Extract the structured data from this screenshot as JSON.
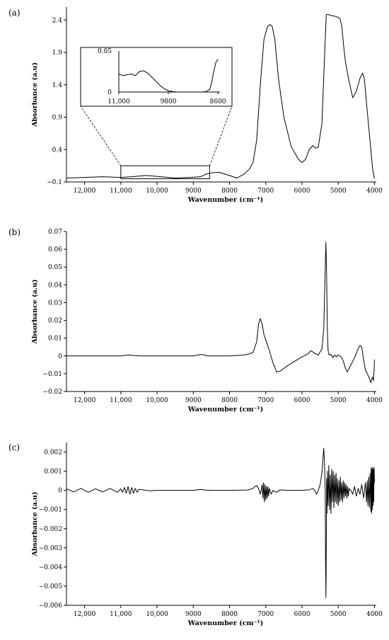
{
  "chart_data": [
    {
      "type": "line",
      "panel_label": "(a)",
      "xlabel": "Wavenumber (cm⁻¹)",
      "ylabel": "Absorbance (a.u)",
      "xlim": [
        12500,
        3950
      ],
      "ylim": [
        -0.1,
        2.6
      ],
      "x_ticks": [
        12000,
        11000,
        10000,
        9000,
        8000,
        7000,
        6000,
        5000,
        4000
      ],
      "x_tick_labels": [
        "12,000",
        "11,000",
        "10,000",
        "9000",
        "8000",
        "7000",
        "6000",
        "5000",
        "4000"
      ],
      "y_ticks": [
        -0.1,
        0.4,
        0.9,
        1.4,
        1.9,
        2.4
      ],
      "y_tick_labels": [
        "−0.1",
        "0.4",
        "0.9",
        "1.4",
        "1.9",
        "2.4"
      ],
      "series": [
        {
          "x": [
            12500,
            12000,
            11500,
            11000,
            10700,
            10300,
            9900,
            9500,
            9100,
            8800,
            8650,
            8500,
            8300,
            8000,
            7800,
            7600,
            7450,
            7350,
            7250,
            7150,
            7050,
            6950,
            6880,
            6820,
            6750,
            6650,
            6500,
            6300,
            6100,
            6000,
            5900,
            5800,
            5700,
            5620,
            5550,
            5450,
            5380,
            5330,
            5300,
            5200,
            5100,
            5000,
            4950,
            4900,
            4850,
            4800,
            4700,
            4600,
            4500,
            4400,
            4330,
            4280,
            4200,
            4100,
            4050,
            4000
          ],
          "y": [
            -0.04,
            -0.03,
            -0.02,
            -0.03,
            -0.02,
            0.0,
            -0.02,
            -0.04,
            -0.03,
            -0.02,
            0.02,
            0.04,
            0.05,
            0.0,
            -0.04,
            0.02,
            0.1,
            0.2,
            0.55,
            1.4,
            2.1,
            2.3,
            2.33,
            2.3,
            2.1,
            1.5,
            0.9,
            0.45,
            0.25,
            0.2,
            0.25,
            0.4,
            0.46,
            0.42,
            0.44,
            0.8,
            1.8,
            2.48,
            2.49,
            2.47,
            2.46,
            2.44,
            2.42,
            2.3,
            2.0,
            1.75,
            1.45,
            1.2,
            1.3,
            1.5,
            1.58,
            1.5,
            1.0,
            0.4,
            0.1,
            -0.05
          ]
        }
      ],
      "inset": {
        "xlim": [
          11000,
          8550
        ],
        "ylim": [
          0,
          0.05
        ],
        "x_ticks": [
          11000,
          9800,
          8600
        ],
        "x_tick_labels": [
          "11,000",
          "9800",
          "8600"
        ],
        "y_ticks": [
          0,
          0.05
        ],
        "y_tick_labels": [
          "0",
          "0.05"
        ],
        "x": [
          11000,
          10900,
          10800,
          10700,
          10600,
          10500,
          10400,
          10300,
          10200,
          10100,
          10000,
          9900,
          9800,
          9700,
          9600,
          9400,
          9200,
          9000,
          8900,
          8800,
          8750,
          8700,
          8650,
          8600
        ],
        "y": [
          0.022,
          0.02,
          0.021,
          0.022,
          0.02,
          0.025,
          0.026,
          0.023,
          0.018,
          0.013,
          0.008,
          0.004,
          0.0015,
          0.0005,
          0.0,
          0.0,
          0.0,
          0.0,
          0.0003,
          0.003,
          0.012,
          0.025,
          0.036,
          0.04
        ]
      }
    },
    {
      "type": "line",
      "panel_label": "(b)",
      "xlabel": "Wavenumber (cm⁻¹)",
      "ylabel": "Absorbance (a.u)",
      "xlim": [
        12500,
        3950
      ],
      "ylim": [
        -0.02,
        0.07
      ],
      "x_ticks": [
        12000,
        11000,
        10000,
        9000,
        8000,
        7000,
        6000,
        5000,
        4000
      ],
      "x_tick_labels": [
        "12,000",
        "11,000",
        "10,000",
        "9000",
        "8000",
        "7000",
        "6000",
        "5000",
        "4000"
      ],
      "y_ticks": [
        -0.02,
        -0.01,
        0,
        0.01,
        0.02,
        0.03,
        0.04,
        0.05,
        0.06,
        0.07
      ],
      "y_tick_labels": [
        "−0.02",
        "−0.01",
        "0",
        "0.01",
        "0.02",
        "0.03",
        "0.04",
        "0.05",
        "0.06",
        "0.07"
      ],
      "series": [
        {
          "x": [
            12500,
            11000,
            10800,
            10600,
            10400,
            9000,
            8800,
            8700,
            8600,
            8000,
            7600,
            7450,
            7350,
            7250,
            7200,
            7150,
            7100,
            7050,
            7000,
            6900,
            6800,
            6700,
            6600,
            6400,
            6200,
            6000,
            5850,
            5750,
            5650,
            5550,
            5450,
            5400,
            5370,
            5340,
            5320,
            5300,
            5280,
            5250,
            5200,
            5150,
            5100,
            5050,
            5000,
            4950,
            4900,
            4850,
            4800,
            4750,
            4650,
            4550,
            4450,
            4400,
            4350,
            4300,
            4250,
            4200,
            4150,
            4100,
            4080,
            4050,
            4030,
            4010,
            4000
          ],
          "y": [
            0.0,
            0.0,
            0.0005,
            0.0002,
            0.0,
            0.0,
            0.0008,
            0.0006,
            0.0,
            0.0,
            0.0005,
            0.0012,
            0.002,
            0.008,
            0.018,
            0.021,
            0.018,
            0.012,
            0.009,
            0.003,
            -0.004,
            -0.009,
            -0.0085,
            -0.0055,
            -0.003,
            -0.0005,
            0.001,
            0.003,
            0.0015,
            0.0005,
            0.004,
            0.015,
            0.04,
            0.064,
            0.045,
            0.015,
            0.003,
            0.0005,
            0.001,
            -0.001,
            0.0005,
            -0.0005,
            0.0005,
            0.0,
            -0.001,
            -0.0035,
            -0.007,
            -0.009,
            -0.005,
            -0.001,
            0.004,
            0.006,
            0.005,
            -0.002,
            -0.008,
            -0.01,
            -0.012,
            -0.015,
            -0.013,
            -0.012,
            -0.014,
            -0.008,
            -0.002
          ]
        }
      ]
    },
    {
      "type": "line",
      "panel_label": "(c)",
      "xlabel": "Wavenumber (cm⁻¹)",
      "ylabel": "Absorbance (a.u)",
      "xlim": [
        12500,
        3950
      ],
      "ylim": [
        -0.006,
        0.0025
      ],
      "x_ticks": [
        12000,
        11000,
        10000,
        9000,
        8000,
        7000,
        6000,
        5000,
        4000
      ],
      "x_tick_labels": [
        "12,000",
        "11,000",
        "10,000",
        "9000",
        "8000",
        "7000",
        "6000",
        "5000",
        "4000"
      ],
      "y_ticks": [
        -0.006,
        -0.005,
        -0.004,
        -0.003,
        -0.002,
        -0.001,
        0,
        0.001,
        0.002
      ],
      "y_tick_labels": [
        "−0.006",
        "−0.005",
        "−0.004",
        "−0.003",
        "−0.002",
        "−0.001",
        "0",
        "0.001",
        "0.002"
      ],
      "series": [
        {
          "x": [
            12500,
            12300,
            12100,
            11900,
            11700,
            11500,
            11300,
            11100,
            11000,
            10950,
            10900,
            10850,
            10800,
            10750,
            10700,
            10650,
            10600,
            10550,
            10500,
            10400,
            10200,
            10000,
            9500,
            9000,
            8800,
            8700,
            8500,
            8000,
            7500,
            7350,
            7300,
            7250,
            7200,
            7150,
            7100,
            7080,
            7060,
            7040,
            7020,
            7000,
            6980,
            6960,
            6940,
            6920,
            6900,
            6850,
            6800,
            6700,
            6600,
            6400,
            6200,
            6000,
            5800,
            5700,
            5650,
            5600,
            5550,
            5500,
            5450,
            5420,
            5400,
            5380,
            5360,
            5350,
            5340,
            5330,
            5320,
            5310,
            5300,
            5280,
            5260,
            5240,
            5220,
            5200,
            5180,
            5160,
            5140,
            5120,
            5100,
            5080,
            5060,
            5040,
            5020,
            5000,
            4980,
            4960,
            4940,
            4920,
            4900,
            4880,
            4860,
            4840,
            4820,
            4800,
            4780,
            4760,
            4740,
            4720,
            4700,
            4650,
            4600,
            4550,
            4500,
            4450,
            4400,
            4350,
            4300,
            4250,
            4220,
            4200,
            4180,
            4160,
            4140,
            4120,
            4100,
            4090,
            4080,
            4070,
            4060,
            4050,
            4040,
            4030,
            4020,
            4010,
            4000
          ],
          "y": [
            8e-05,
            -8e-05,
            0.0001,
            -0.0001,
            8e-05,
            -8e-05,
            0.0001,
            -0.0001,
            8e-05,
            -0.0001,
            0.00015,
            -0.00015,
            0.0002,
            -0.0002,
            0.00015,
            -0.00015,
            0.0001,
            -0.0001,
            5e-05,
            3e-05,
            -2e-05,
            0.0,
            0.0,
            0.0,
            5e-05,
            2e-05,
            0.0,
            0.0,
            2e-05,
            0.0001,
            0.0002,
            0.00025,
            0.0001,
            -0.0002,
            0.0003,
            -0.0004,
            0.0004,
            -0.0006,
            0.0003,
            -0.0005,
            0.0002,
            -0.0004,
            0.0002,
            -0.0003,
            0.0001,
            -0.0002,
            0.0,
            -0.0001,
            3e-05,
            0.0,
            0.0,
            0.0,
            3e-05,
            0.0001,
            0.0,
            -0.0002,
            0.0,
            0.0003,
            0.0009,
            0.0017,
            0.0022,
            0.0015,
            0.0,
            -0.0035,
            -0.0056,
            -0.003,
            0.0006,
            -0.0012,
            0.001,
            -0.0008,
            0.0013,
            -0.001,
            0.0008,
            -0.0012,
            0.0011,
            -0.0006,
            0.001,
            -0.0009,
            0.0008,
            -0.0006,
            0.0009,
            -0.0007,
            0.0006,
            -0.0008,
            0.0005,
            -0.0006,
            0.0007,
            -0.0005,
            0.0004,
            -0.0006,
            0.0005,
            -0.0004,
            0.0004,
            -0.0003,
            0.0003,
            -0.0004,
            0.0002,
            -0.0003,
            0.0001,
            0.0,
            -0.0002,
            0.0002,
            -0.0003,
            0.0001,
            -0.0002,
            0.0003,
            -0.0004,
            0.0004,
            -0.0006,
            0.0005,
            -0.0008,
            0.0007,
            -0.0009,
            0.0009,
            -0.0011,
            0.0012,
            -0.0012,
            0.0011,
            -0.001,
            0.0012,
            -0.0008,
            0.0011,
            -0.0006,
            0.0012,
            0.0004
          ]
        }
      ]
    }
  ]
}
